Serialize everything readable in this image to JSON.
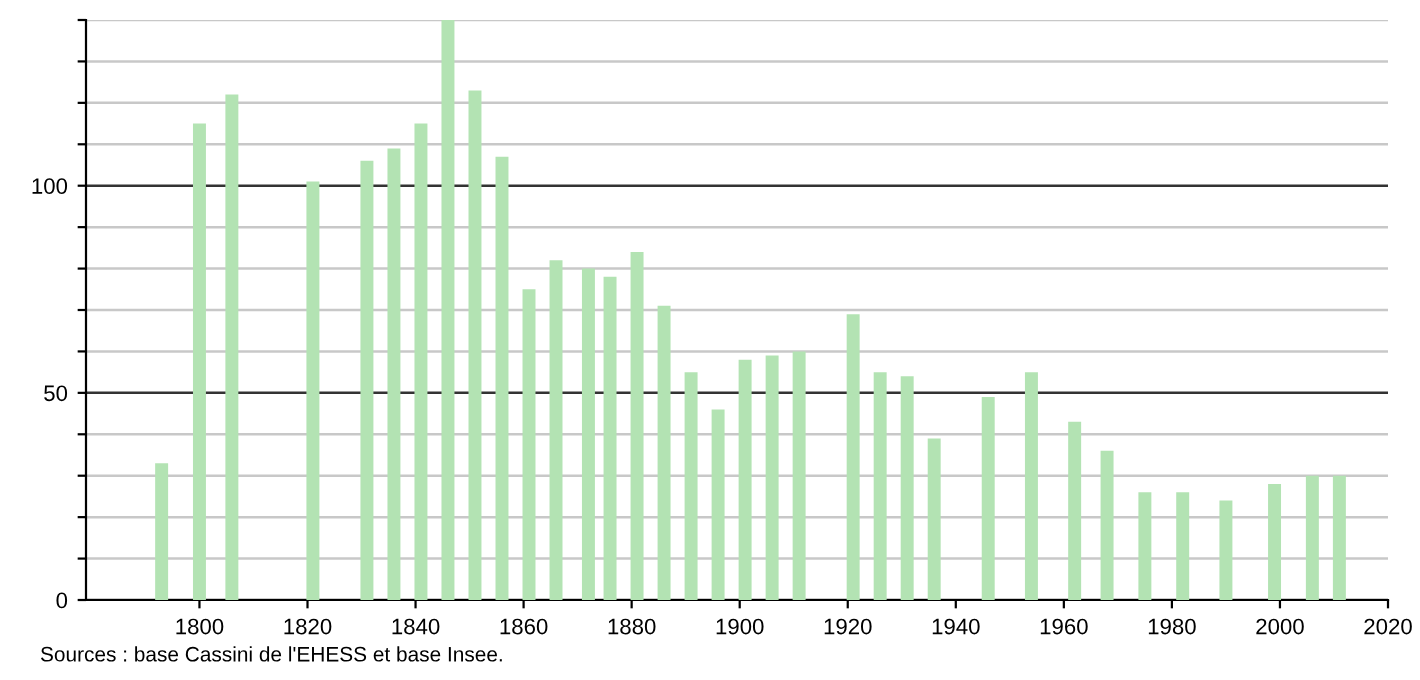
{
  "chart_data": {
    "type": "bar",
    "color": "#b3e3b3",
    "x": [
      1793,
      1800,
      1806,
      1821,
      1831,
      1836,
      1841,
      1846,
      1851,
      1856,
      1861,
      1866,
      1872,
      1876,
      1881,
      1886,
      1891,
      1896,
      1901,
      1906,
      1911,
      1921,
      1926,
      1931,
      1936,
      1946,
      1954,
      1962,
      1968,
      1975,
      1982,
      1990,
      1999,
      2006,
      2011
    ],
    "values": [
      33,
      115,
      122,
      101,
      106,
      109,
      115,
      140,
      123,
      107,
      75,
      82,
      80,
      78,
      84,
      71,
      55,
      46,
      58,
      59,
      60,
      69,
      55,
      54,
      39,
      49,
      55,
      43,
      36,
      26,
      26,
      24,
      28,
      30,
      30
    ],
    "xlim": [
      1779,
      2020
    ],
    "xticks": [
      1800,
      1820,
      1840,
      1860,
      1880,
      1900,
      1920,
      1940,
      1960,
      1980,
      2000,
      2020
    ],
    "ylim": [
      0,
      140
    ],
    "yticks": [
      0,
      {
        "value": 10,
        "label": null
      },
      {
        "value": 20,
        "label": null
      },
      {
        "value": 30,
        "label": null
      },
      {
        "value": 40,
        "label": null
      },
      50,
      {
        "value": 60,
        "label": null
      },
      {
        "value": 70,
        "label": null
      },
      {
        "value": 80,
        "label": null
      },
      {
        "value": 90,
        "label": null
      },
      100,
      {
        "value": 110,
        "label": null
      },
      {
        "value": 120,
        "label": null
      },
      {
        "value": 130,
        "label": null
      },
      {
        "value": 140,
        "label": null
      }
    ],
    "grid": "y",
    "annotations": [
      "Sources : base Cassini de l'EHESS et base Insee."
    ]
  }
}
